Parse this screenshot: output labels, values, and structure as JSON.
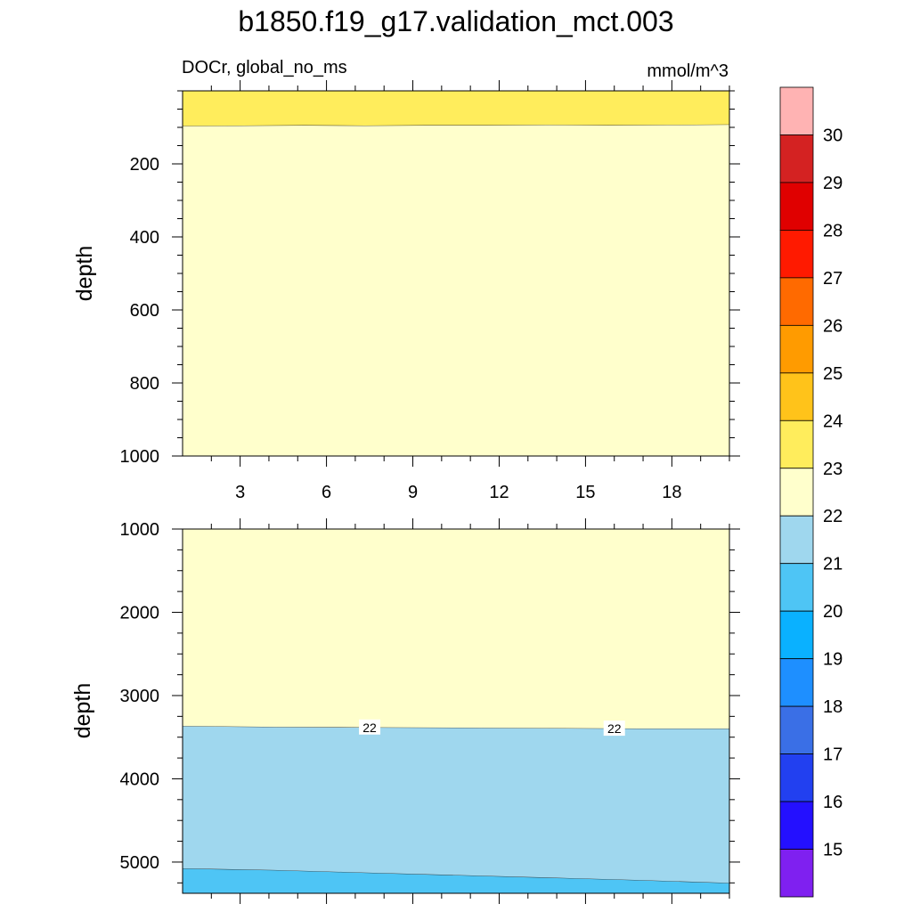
{
  "chart_data": [
    {
      "type": "contour",
      "title": "b1850.f19_g17.validation_mct.003",
      "left_string": "DOCr, global_no_ms",
      "right_string": "mmol/m^3",
      "panel": "upper",
      "ylabel": "depth",
      "ylim": [
        0,
        1000
      ],
      "y_reversed": true,
      "yticks": [
        200,
        400,
        600,
        800,
        1000
      ],
      "xlim": [
        1,
        20
      ],
      "xticks": [
        3,
        6,
        9,
        12,
        15,
        18
      ],
      "regions": [
        {
          "range": "23-24",
          "color": "#ffed5c",
          "depth_bottom": [
            97,
            96,
            95,
            96,
            95,
            95,
            94,
            95,
            94,
            93
          ]
        },
        {
          "range": "22-23",
          "color": "#ffffcc",
          "depth_bottom": [
            1000,
            1000
          ]
        }
      ]
    },
    {
      "type": "contour",
      "panel": "lower",
      "ylabel": "depth",
      "ylim": [
        1000,
        5375
      ],
      "y_reversed": true,
      "yticks": [
        1000,
        2000,
        3000,
        4000,
        5000
      ],
      "xlim": [
        1,
        20
      ],
      "xticks": [
        3,
        6,
        9,
        12,
        15,
        18
      ],
      "regions": [
        {
          "range": "22-23",
          "color": "#ffffcc",
          "depth_bottom": [
            3370,
            3380,
            3385,
            3390,
            3395,
            3400,
            3400
          ]
        },
        {
          "range": "21-22",
          "color": "#9fd7ee",
          "depth_bottom": [
            5080,
            5100,
            5130,
            5160,
            5190,
            5220,
            5255
          ]
        },
        {
          "range": "20-21",
          "color": "#4ec5f5",
          "depth_bottom": [
            5375,
            5375
          ]
        }
      ],
      "contour_labels": [
        {
          "x": 7.5,
          "depth": 3383,
          "text": "22"
        },
        {
          "x": 16,
          "depth": 3397,
          "text": "22"
        }
      ]
    }
  ],
  "colorbar": {
    "labels": [
      "30",
      "29",
      "28",
      "27",
      "26",
      "25",
      "24",
      "23",
      "22",
      "21",
      "20",
      "19",
      "18",
      "17",
      "16",
      "15"
    ],
    "colors": [
      "#ffb3b3",
      "#d42222",
      "#e00000",
      "#ff1a00",
      "#ff6a00",
      "#ff9b00",
      "#ffc31a",
      "#ffed5c",
      "#ffffcc",
      "#9fd7ee",
      "#4ec5f5",
      "#0ab1ff",
      "#1e8fff",
      "#3a6fe6",
      "#2240f0",
      "#2410ff",
      "#7f20f0"
    ]
  }
}
